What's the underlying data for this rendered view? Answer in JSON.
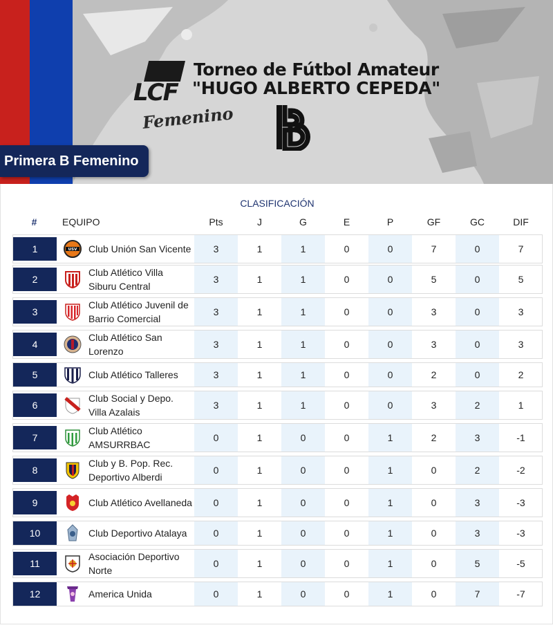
{
  "header": {
    "logo_text": "LCF",
    "femenino_label": "Femenino",
    "title_line1": "Torneo de Fútbol Amateur",
    "title_line2": "\"HUGO ALBERTO CEPEDA\"",
    "category": "Primera B Femenino",
    "colors": {
      "stripe_red": "#c8211d",
      "stripe_blue": "#0f3fae",
      "navy": "#14275a",
      "shade": "#e9f3fb"
    }
  },
  "standings": {
    "title": "CLASIFICACIÓN",
    "columns": {
      "rank": "#",
      "team": "EQUIPO",
      "pts": "Pts",
      "j": "J",
      "g": "G",
      "e": "E",
      "p": "P",
      "gf": "GF",
      "gc": "GC",
      "dif": "DIF"
    },
    "rows": [
      {
        "rank": "1",
        "team": "Club Unión San Vicente",
        "pts": "3",
        "j": "1",
        "g": "1",
        "e": "0",
        "p": "0",
        "gf": "7",
        "gc": "0",
        "dif": "7",
        "crest_label": "USV",
        "crest": "usv-crest-icon"
      },
      {
        "rank": "2",
        "team": "Club Atlético Villa Siburu Central",
        "pts": "3",
        "j": "1",
        "g": "1",
        "e": "0",
        "p": "0",
        "gf": "5",
        "gc": "0",
        "dif": "5",
        "crest": "villa-siburu-crest-icon"
      },
      {
        "rank": "3",
        "team": "Club Atlético Juvenil de Barrio Comercial",
        "pts": "3",
        "j": "1",
        "g": "1",
        "e": "0",
        "p": "0",
        "gf": "3",
        "gc": "0",
        "dif": "3",
        "crest": "juvenil-comercial-crest-icon"
      },
      {
        "rank": "4",
        "team": "Club Atlético San Lorenzo",
        "pts": "3",
        "j": "1",
        "g": "1",
        "e": "0",
        "p": "0",
        "gf": "3",
        "gc": "0",
        "dif": "3",
        "crest": "san-lorenzo-crest-icon"
      },
      {
        "rank": "5",
        "team": "Club Atlético Talleres",
        "pts": "3",
        "j": "1",
        "g": "1",
        "e": "0",
        "p": "0",
        "gf": "2",
        "gc": "0",
        "dif": "2",
        "crest": "talleres-crest-icon"
      },
      {
        "rank": "6",
        "team": "Club Social y Depo. Villa Azalais",
        "pts": "3",
        "j": "1",
        "g": "1",
        "e": "0",
        "p": "0",
        "gf": "3",
        "gc": "2",
        "dif": "1",
        "crest": "villa-azalais-crest-icon"
      },
      {
        "rank": "7",
        "team": "Club Atlético AMSURRBAC",
        "pts": "0",
        "j": "1",
        "g": "0",
        "e": "0",
        "p": "1",
        "gf": "2",
        "gc": "3",
        "dif": "-1",
        "crest": "amsurrbac-crest-icon"
      },
      {
        "rank": "8",
        "team": "Club y B. Pop. Rec. Deportivo Alberdi",
        "pts": "0",
        "j": "1",
        "g": "0",
        "e": "0",
        "p": "1",
        "gf": "0",
        "gc": "2",
        "dif": "-2",
        "crest": "alberdi-crest-icon"
      },
      {
        "rank": "9",
        "team": "Club Atlético Avellaneda",
        "pts": "0",
        "j": "1",
        "g": "0",
        "e": "0",
        "p": "1",
        "gf": "0",
        "gc": "3",
        "dif": "-3",
        "crest": "avellaneda-crest-icon"
      },
      {
        "rank": "10",
        "team": "Club Deportivo Atalaya",
        "pts": "0",
        "j": "1",
        "g": "0",
        "e": "0",
        "p": "1",
        "gf": "0",
        "gc": "3",
        "dif": "-3",
        "crest": "atalaya-crest-icon"
      },
      {
        "rank": "11",
        "team": "Asociación Deportivo Norte",
        "pts": "0",
        "j": "1",
        "g": "0",
        "e": "0",
        "p": "1",
        "gf": "0",
        "gc": "5",
        "dif": "-5",
        "crest": "deportivo-norte-crest-icon"
      },
      {
        "rank": "12",
        "team": "America Unida",
        "pts": "0",
        "j": "1",
        "g": "0",
        "e": "0",
        "p": "1",
        "gf": "0",
        "gc": "7",
        "dif": "-7",
        "crest": "america-unida-crest-icon"
      }
    ]
  }
}
